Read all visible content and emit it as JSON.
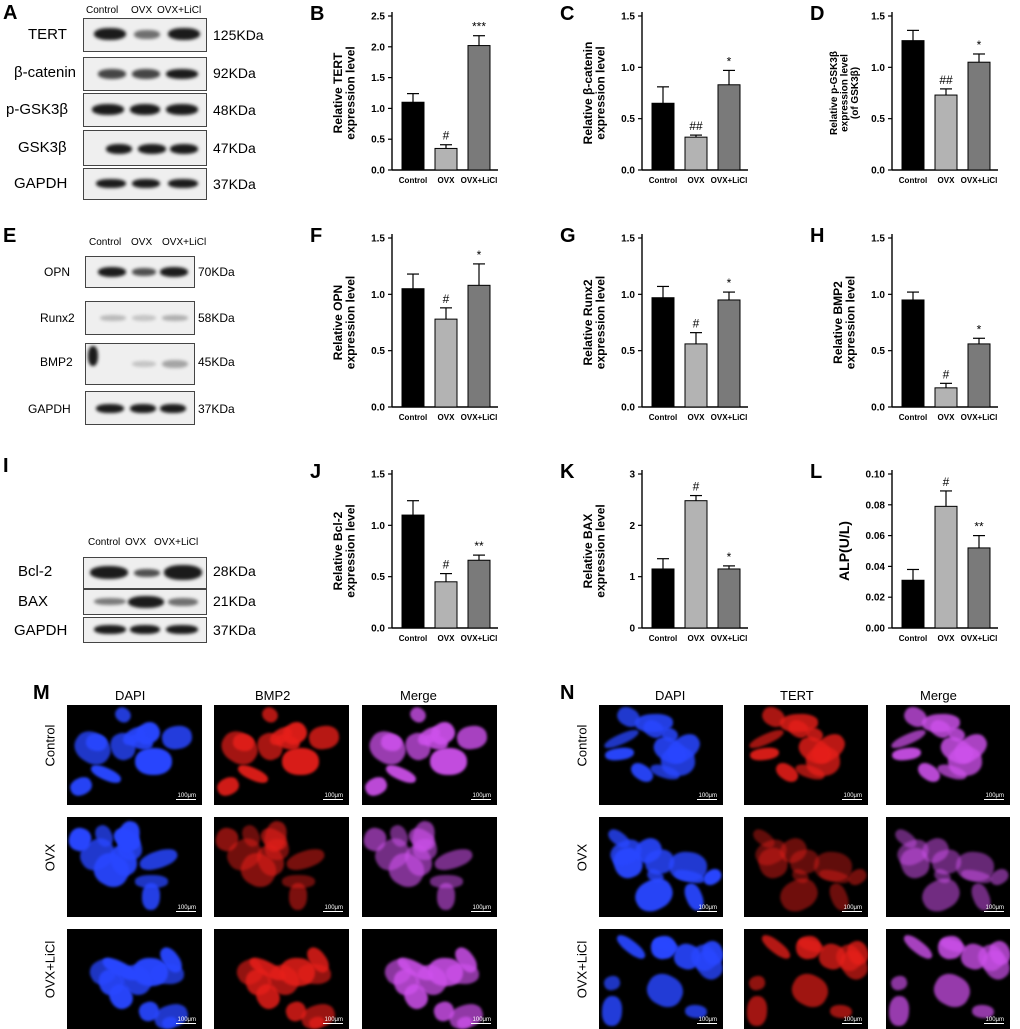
{
  "panels": {
    "A": {
      "letter": "A",
      "lanes": [
        "Control",
        "OVX",
        "OVX+LiCl"
      ],
      "rows": [
        {
          "protein": "TERT",
          "kda": "125KDa"
        },
        {
          "protein": "β-catenin",
          "kda": "92KDa"
        },
        {
          "protein": "p-GSK3β",
          "kda": "48KDa"
        },
        {
          "protein": "GSK3β",
          "kda": "47KDa"
        },
        {
          "protein": "GAPDH",
          "kda": "37KDa"
        }
      ]
    },
    "E": {
      "letter": "E",
      "lanes": [
        "Control",
        "OVX",
        "OVX+LiCl"
      ],
      "rows": [
        {
          "protein": "OPN",
          "kda": "70KDa"
        },
        {
          "protein": "Runx2",
          "kda": "58KDa"
        },
        {
          "protein": "BMP2",
          "kda": "45KDa"
        },
        {
          "protein": "GAPDH",
          "kda": "37KDa"
        }
      ]
    },
    "I": {
      "letter": "I",
      "lanes": [
        "Control",
        "OVX",
        "OVX+LiCl"
      ],
      "rows": [
        {
          "protein": "Bcl-2",
          "kda": "28KDa"
        },
        {
          "protein": "BAX",
          "kda": "21KDa"
        },
        {
          "protein": "GAPDH",
          "kda": "37KDa"
        }
      ]
    },
    "M": {
      "letter": "M",
      "columns": [
        "DAPI",
        "BMP2",
        "Merge"
      ],
      "rows": [
        "Control",
        "OVX",
        "OVX+LiCl"
      ],
      "scale_bar": "100μm"
    },
    "N": {
      "letter": "N",
      "columns": [
        "DAPI",
        "TERT",
        "Merge"
      ],
      "rows": [
        "Control",
        "OVX",
        "OVX+LiCl"
      ],
      "scale_bar": "100μm"
    }
  },
  "colors": {
    "control": "#000000",
    "ovx": "#b3b3b3",
    "ovx_licl": "#7a7a7a"
  },
  "chart_data": [
    {
      "id": "B",
      "letter": "B",
      "type": "bar",
      "categories": [
        "Control",
        "OVX",
        "OVX+LiCl"
      ],
      "values": [
        1.1,
        0.35,
        2.02
      ],
      "errors": [
        0.14,
        0.06,
        0.16
      ],
      "annotations": [
        "",
        "#",
        "***"
      ],
      "ylabel": [
        "Relative TERT",
        "expression level"
      ],
      "ylim": [
        0,
        2.5
      ],
      "yticks": [
        "0.0",
        "0.5",
        "1.0",
        "1.5",
        "2.0",
        "2.5"
      ]
    },
    {
      "id": "C",
      "letter": "C",
      "type": "bar",
      "categories": [
        "Control",
        "OVX",
        "OVX+LiCl"
      ],
      "values": [
        0.65,
        0.32,
        0.83
      ],
      "errors": [
        0.16,
        0.02,
        0.14
      ],
      "annotations": [
        "",
        "##",
        "*"
      ],
      "ylabel": [
        "Relative β-catenin",
        "expression level"
      ],
      "ylim": [
        0,
        1.5
      ],
      "yticks": [
        "0.0",
        "0.5",
        "1.0",
        "1.5"
      ]
    },
    {
      "id": "D",
      "letter": "D",
      "type": "bar",
      "categories": [
        "Control",
        "OVX",
        "OVX+LiCl"
      ],
      "values": [
        1.26,
        0.73,
        1.05
      ],
      "errors": [
        0.1,
        0.06,
        0.08
      ],
      "annotations": [
        "",
        "##",
        "*"
      ],
      "ylabel": [
        "Relative p-GSK3β",
        "expression level",
        "(of GSK3β)"
      ],
      "ylim": [
        0,
        1.5
      ],
      "yticks": [
        "0.0",
        "0.5",
        "1.0",
        "1.5"
      ]
    },
    {
      "id": "F",
      "letter": "F",
      "type": "bar",
      "categories": [
        "Control",
        "OVX",
        "OVX+LiCl"
      ],
      "values": [
        1.05,
        0.78,
        1.08
      ],
      "errors": [
        0.13,
        0.1,
        0.19
      ],
      "annotations": [
        "",
        "#",
        "*"
      ],
      "ylabel": [
        "Relative OPN",
        "expression level"
      ],
      "ylim": [
        0,
        1.5
      ],
      "yticks": [
        "0.0",
        "0.5",
        "1.0",
        "1.5"
      ]
    },
    {
      "id": "G",
      "letter": "G",
      "type": "bar",
      "categories": [
        "Control",
        "OVX",
        "OVX+LiCl"
      ],
      "values": [
        0.97,
        0.56,
        0.95
      ],
      "errors": [
        0.1,
        0.1,
        0.07
      ],
      "annotations": [
        "",
        "#",
        "*"
      ],
      "ylabel": [
        "Relative Runx2",
        "expression level"
      ],
      "ylim": [
        0,
        1.5
      ],
      "yticks": [
        "0.0",
        "0.5",
        "1.0",
        "1.5"
      ]
    },
    {
      "id": "H",
      "letter": "H",
      "type": "bar",
      "categories": [
        "Control",
        "OVX",
        "OVX+LiCl"
      ],
      "values": [
        0.95,
        0.17,
        0.56
      ],
      "errors": [
        0.07,
        0.04,
        0.05
      ],
      "annotations": [
        "",
        "#",
        "*"
      ],
      "ylabel": [
        "Relative BMP2",
        "expression level"
      ],
      "ylim": [
        0,
        1.5
      ],
      "yticks": [
        "0.0",
        "0.5",
        "1.0",
        "1.5"
      ]
    },
    {
      "id": "J",
      "letter": "J",
      "type": "bar",
      "categories": [
        "Control",
        "OVX",
        "OVX+LiCl"
      ],
      "values": [
        1.1,
        0.45,
        0.66
      ],
      "errors": [
        0.14,
        0.08,
        0.05
      ],
      "annotations": [
        "",
        "#",
        "**"
      ],
      "ylabel": [
        "Relative Bcl-2",
        "expression level"
      ],
      "ylim": [
        0,
        1.5
      ],
      "yticks": [
        "0.0",
        "0.5",
        "1.0",
        "1.5"
      ]
    },
    {
      "id": "K",
      "letter": "K",
      "type": "bar",
      "categories": [
        "Control",
        "OVX",
        "OVX+LiCl"
      ],
      "values": [
        1.15,
        2.48,
        1.15
      ],
      "errors": [
        0.2,
        0.1,
        0.06
      ],
      "annotations": [
        "",
        "#",
        "*"
      ],
      "ylabel": [
        "Relative BAX",
        "expression level"
      ],
      "ylim": [
        0,
        3
      ],
      "yticks": [
        "0",
        "1",
        "2",
        "3"
      ]
    },
    {
      "id": "L",
      "letter": "L",
      "type": "bar",
      "categories": [
        "Control",
        "OVX",
        "OVX+LiCl"
      ],
      "values": [
        0.031,
        0.079,
        0.052
      ],
      "errors": [
        0.007,
        0.01,
        0.008
      ],
      "annotations": [
        "",
        "#",
        "**"
      ],
      "ylabel": [
        "ALP(U/L)"
      ],
      "ylim": [
        0,
        0.1
      ],
      "yticks": [
        "0.00",
        "0.02",
        "0.04",
        "0.06",
        "0.08",
        "0.10"
      ]
    }
  ]
}
